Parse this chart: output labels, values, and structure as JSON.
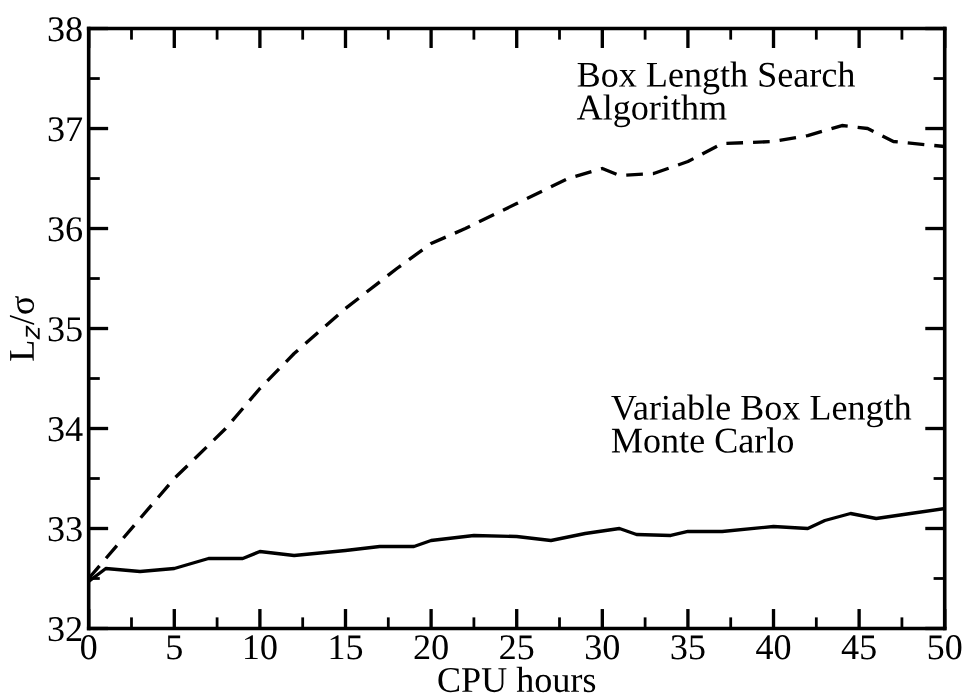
{
  "chart_data": {
    "type": "line",
    "xlabel": "CPU hours",
    "ylabel": "L$_{z}$/σ",
    "xlim": [
      0,
      50
    ],
    "ylim": [
      32,
      38
    ],
    "xticks": [
      0,
      5,
      10,
      15,
      20,
      25,
      30,
      35,
      40,
      45,
      50
    ],
    "yticks": [
      32,
      33,
      34,
      35,
      36,
      37,
      38
    ],
    "grid": false,
    "marker": "none",
    "annotations": [
      "Box Length Search\nAlgorithm",
      "Variable Box Length\nMonte Carlo"
    ],
    "series": [
      {
        "color": "#000000",
        "line_style": "dashed",
        "x": [
          0,
          2,
          5,
          8,
          10,
          12,
          15,
          18,
          20,
          22,
          25,
          28,
          30,
          31,
          33,
          35,
          37,
          40,
          42,
          44,
          45.5,
          47,
          50
        ],
        "values": [
          32.5,
          32.9,
          33.5,
          34.0,
          34.4,
          34.75,
          35.2,
          35.6,
          35.85,
          36.0,
          36.25,
          36.5,
          36.6,
          36.53,
          36.55,
          36.67,
          36.85,
          36.87,
          36.93,
          37.03,
          37.0,
          36.87,
          36.82
        ]
      },
      {
        "color": "#000000",
        "line_style": "solid",
        "x": [
          0,
          1,
          3,
          5,
          7,
          9,
          10,
          12,
          15,
          17,
          19,
          20,
          22.5,
          25,
          27,
          29,
          31,
          32,
          34,
          35,
          37,
          40,
          42,
          43,
          44.5,
          46,
          48,
          50
        ],
        "values": [
          32.47,
          32.6,
          32.57,
          32.6,
          32.7,
          32.7,
          32.77,
          32.73,
          32.78,
          32.82,
          32.82,
          32.88,
          32.93,
          32.92,
          32.88,
          32.95,
          33.0,
          32.94,
          32.93,
          32.97,
          32.97,
          33.02,
          33.0,
          33.08,
          33.15,
          33.1,
          33.15,
          33.2
        ]
      }
    ]
  }
}
